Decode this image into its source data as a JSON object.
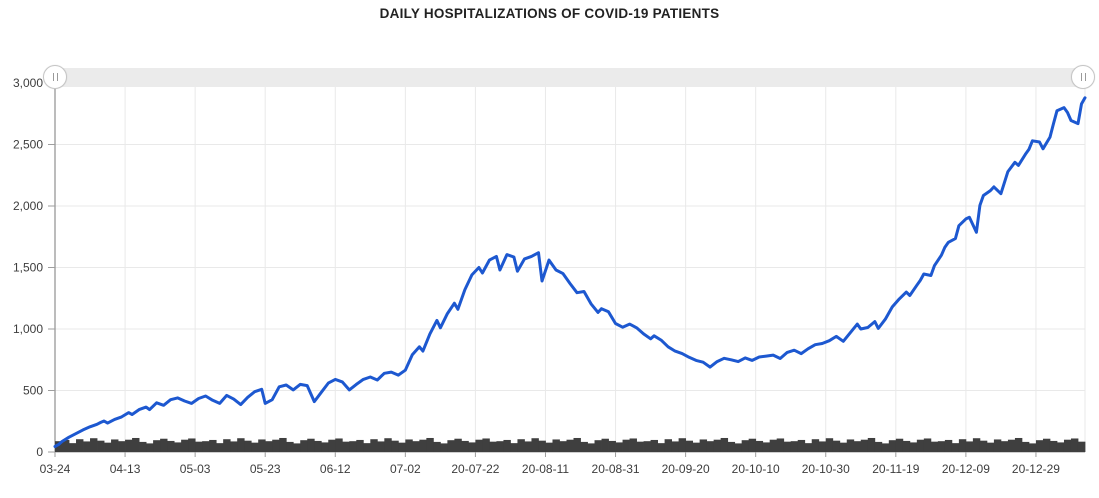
{
  "title": "DAILY HOSPITALIZATIONS OF COVID-19 PATIENTS",
  "colors": {
    "line": "#1d58d0",
    "columns": "#3f3f3f",
    "grid": "#e9e9e9",
    "axis_line": "#9e9e9e",
    "y_axis_line": "#7a7a7a",
    "axis_text": "#3d3d3d",
    "scrollbar_track": "#ebebeb",
    "background": "#ffffff"
  },
  "scrollbar": {
    "left_grip_icon": "vertical-grip-lines",
    "right_grip_icon": "vertical-grip-lines",
    "selected_range": "full"
  },
  "chart_data": {
    "type": "line",
    "title": "DAILY HOSPITALIZATIONS OF COVID-19 PATIENTS",
    "x_axis": {
      "type": "date",
      "start": "2020-03-24",
      "end": "2021-01-12",
      "total_days": 294,
      "tick_interval_days": 20,
      "tick_labels": [
        "03-24",
        "04-13",
        "05-03",
        "05-23",
        "06-12",
        "07-02",
        "20-07-22",
        "20-08-11",
        "20-08-31",
        "20-09-20",
        "20-10-10",
        "20-10-30",
        "20-11-19",
        "20-12-09",
        "20-12-29"
      ]
    },
    "y_axis": {
      "min": 0,
      "max": 3000,
      "tick_step": 500,
      "tick_labels": [
        "0",
        "500",
        "1,000",
        "1,500",
        "2,000",
        "2,500",
        "3,000"
      ]
    },
    "grid": true,
    "legend": "none",
    "series": [
      {
        "name": "hospitalized-patients-line",
        "type": "line",
        "color": "#1d58d0",
        "x_unit": "days-since-start",
        "points": [
          [
            0,
            45
          ],
          [
            1,
            60
          ],
          [
            2,
            85
          ],
          [
            4,
            120
          ],
          [
            6,
            150
          ],
          [
            8,
            180
          ],
          [
            10,
            205
          ],
          [
            12,
            225
          ],
          [
            13,
            240
          ],
          [
            14,
            252
          ],
          [
            15,
            235
          ],
          [
            17,
            265
          ],
          [
            19,
            285
          ],
          [
            21,
            320
          ],
          [
            22,
            305
          ],
          [
            24,
            345
          ],
          [
            26,
            365
          ],
          [
            27,
            345
          ],
          [
            29,
            400
          ],
          [
            31,
            380
          ],
          [
            33,
            425
          ],
          [
            35,
            440
          ],
          [
            37,
            415
          ],
          [
            39,
            395
          ],
          [
            41,
            435
          ],
          [
            43,
            455
          ],
          [
            45,
            420
          ],
          [
            47,
            395
          ],
          [
            49,
            460
          ],
          [
            51,
            430
          ],
          [
            53,
            385
          ],
          [
            55,
            445
          ],
          [
            57,
            490
          ],
          [
            59,
            510
          ],
          [
            60,
            395
          ],
          [
            62,
            425
          ],
          [
            64,
            530
          ],
          [
            66,
            545
          ],
          [
            68,
            505
          ],
          [
            70,
            550
          ],
          [
            72,
            540
          ],
          [
            74,
            410
          ],
          [
            76,
            485
          ],
          [
            78,
            560
          ],
          [
            80,
            590
          ],
          [
            82,
            570
          ],
          [
            84,
            505
          ],
          [
            86,
            550
          ],
          [
            88,
            590
          ],
          [
            90,
            610
          ],
          [
            92,
            585
          ],
          [
            94,
            640
          ],
          [
            96,
            650
          ],
          [
            98,
            625
          ],
          [
            100,
            665
          ],
          [
            102,
            790
          ],
          [
            104,
            855
          ],
          [
            105,
            820
          ],
          [
            107,
            960
          ],
          [
            109,
            1070
          ],
          [
            110,
            1010
          ],
          [
            112,
            1125
          ],
          [
            114,
            1210
          ],
          [
            115,
            1160
          ],
          [
            117,
            1320
          ],
          [
            119,
            1440
          ],
          [
            121,
            1500
          ],
          [
            122,
            1455
          ],
          [
            124,
            1560
          ],
          [
            126,
            1590
          ],
          [
            127,
            1480
          ],
          [
            129,
            1605
          ],
          [
            131,
            1585
          ],
          [
            132,
            1470
          ],
          [
            134,
            1570
          ],
          [
            136,
            1590
          ],
          [
            138,
            1620
          ],
          [
            139,
            1390
          ],
          [
            141,
            1560
          ],
          [
            143,
            1480
          ],
          [
            145,
            1450
          ],
          [
            147,
            1370
          ],
          [
            149,
            1295
          ],
          [
            151,
            1305
          ],
          [
            153,
            1205
          ],
          [
            155,
            1135
          ],
          [
            156,
            1165
          ],
          [
            158,
            1140
          ],
          [
            160,
            1045
          ],
          [
            162,
            1015
          ],
          [
            164,
            1040
          ],
          [
            166,
            1010
          ],
          [
            168,
            960
          ],
          [
            170,
            920
          ],
          [
            171,
            945
          ],
          [
            173,
            910
          ],
          [
            175,
            855
          ],
          [
            177,
            820
          ],
          [
            179,
            800
          ],
          [
            181,
            770
          ],
          [
            183,
            745
          ],
          [
            185,
            730
          ],
          [
            187,
            690
          ],
          [
            189,
            735
          ],
          [
            191,
            762
          ],
          [
            193,
            750
          ],
          [
            195,
            735
          ],
          [
            197,
            765
          ],
          [
            199,
            745
          ],
          [
            201,
            772
          ],
          [
            203,
            780
          ],
          [
            205,
            788
          ],
          [
            207,
            760
          ],
          [
            209,
            810
          ],
          [
            211,
            828
          ],
          [
            213,
            800
          ],
          [
            215,
            840
          ],
          [
            217,
            872
          ],
          [
            219,
            882
          ],
          [
            221,
            905
          ],
          [
            223,
            940
          ],
          [
            225,
            900
          ],
          [
            227,
            970
          ],
          [
            229,
            1040
          ],
          [
            230,
            1000
          ],
          [
            232,
            1012
          ],
          [
            234,
            1060
          ],
          [
            235,
            1005
          ],
          [
            237,
            1080
          ],
          [
            239,
            1180
          ],
          [
            241,
            1245
          ],
          [
            243,
            1300
          ],
          [
            244,
            1272
          ],
          [
            246,
            1355
          ],
          [
            247,
            1395
          ],
          [
            248,
            1447
          ],
          [
            250,
            1435
          ],
          [
            251,
            1515
          ],
          [
            253,
            1600
          ],
          [
            254,
            1665
          ],
          [
            255,
            1705
          ],
          [
            257,
            1735
          ],
          [
            258,
            1840
          ],
          [
            260,
            1895
          ],
          [
            261,
            1908
          ],
          [
            263,
            1786
          ],
          [
            264,
            2005
          ],
          [
            265,
            2085
          ],
          [
            267,
            2125
          ],
          [
            268,
            2155
          ],
          [
            270,
            2100
          ],
          [
            272,
            2280
          ],
          [
            274,
            2355
          ],
          [
            275,
            2330
          ],
          [
            277,
            2420
          ],
          [
            278,
            2460
          ],
          [
            279,
            2530
          ],
          [
            281,
            2520
          ],
          [
            282,
            2465
          ],
          [
            284,
            2560
          ],
          [
            285,
            2670
          ],
          [
            286,
            2775
          ],
          [
            288,
            2800
          ],
          [
            289,
            2760
          ],
          [
            290,
            2695
          ],
          [
            292,
            2670
          ],
          [
            293,
            2830
          ],
          [
            294,
            2880
          ]
        ]
      },
      {
        "name": "daily-columns",
        "type": "column",
        "color": "#3f3f3f",
        "x_unit": "evenly-spaced-across-range",
        "values": [
          88,
          98,
          72,
          104,
          86,
          112,
          92,
          76,
          102,
          88,
          100,
          114,
          82,
          70,
          96,
          108,
          90,
          78,
          100,
          110,
          84,
          88,
          98,
          72,
          104,
          86,
          112,
          92,
          76,
          102,
          88,
          100,
          114,
          82,
          70,
          96,
          108,
          90,
          78,
          100,
          110,
          84,
          88,
          98,
          72,
          104,
          86,
          112,
          92,
          76,
          102,
          88,
          100,
          114,
          82,
          70,
          96,
          108,
          90,
          78,
          100,
          110,
          84,
          88,
          98,
          72,
          104,
          86,
          112,
          92,
          76,
          102,
          88,
          100,
          114,
          82,
          70,
          96,
          108,
          90,
          78,
          100,
          110,
          84,
          88,
          98,
          72,
          104,
          86,
          112,
          92,
          76,
          102,
          88,
          100,
          114,
          82,
          70,
          96,
          108,
          90,
          78,
          100,
          110,
          84,
          88,
          98,
          72,
          104,
          86,
          112,
          92,
          76,
          102,
          88,
          100,
          114,
          82,
          70,
          96,
          108,
          90,
          78,
          100,
          110,
          84,
          88,
          98,
          72,
          104,
          86,
          112,
          92,
          76,
          102,
          88,
          100,
          114,
          82,
          70,
          96,
          108,
          90,
          78,
          100,
          110,
          84
        ]
      }
    ]
  }
}
